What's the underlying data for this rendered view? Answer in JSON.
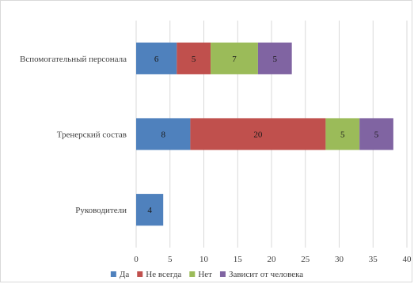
{
  "chart_data": {
    "type": "bar",
    "orientation": "horizontal",
    "stacked": true,
    "categories": [
      "Руководители",
      "Тренерский состав",
      "Вспомогательный персонала"
    ],
    "series": [
      {
        "name": "Да",
        "color": "#4f81bd",
        "values": [
          4,
          8,
          6
        ]
      },
      {
        "name": "Не всегда",
        "color": "#c0504d",
        "values": [
          null,
          20,
          5
        ]
      },
      {
        "name": "Нет",
        "color": "#9bbb59",
        "values": [
          null,
          5,
          7
        ]
      },
      {
        "name": "Зависит от человека",
        "color": "#8064a2",
        "values": [
          null,
          5,
          5
        ]
      }
    ],
    "xlim": [
      0,
      40
    ],
    "xticks": [
      0,
      5,
      10,
      15,
      20,
      25,
      30,
      35,
      40
    ],
    "grid": true,
    "legend_position": "bottom",
    "show_data_labels": true
  }
}
